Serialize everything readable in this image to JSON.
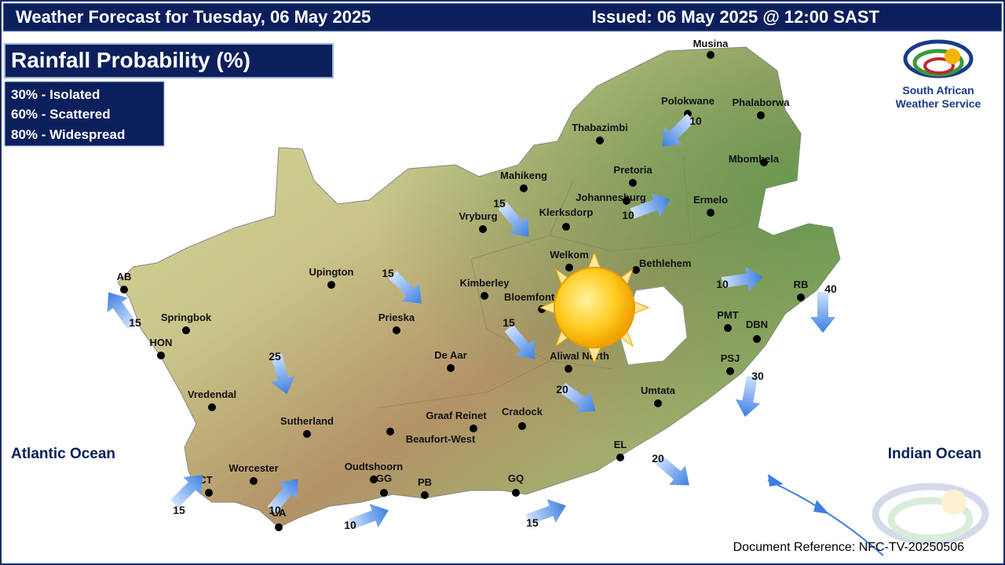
{
  "header": {
    "title": "Weather Forecast for Tuesday, 06 May 2025",
    "issued": "Issued: 06 May 2025 @ 12:00 SAST"
  },
  "panel": {
    "title": "Rainfall Probability (%)",
    "legend": [
      "30% - Isolated",
      "60% - Scattered",
      "80% - Widespread"
    ]
  },
  "logo": {
    "line1": "South African",
    "line2": "Weather Service"
  },
  "oceans": [
    "Atlantic Ocean",
    "Indian Ocean"
  ],
  "cities": [
    "Musina",
    "Polokwane",
    "Phalaborwa",
    "Thabazimbi",
    "Mbombela",
    "Mahikeng",
    "Pretoria",
    "Johannesburg",
    "Ermelo",
    "Vryburg",
    "Klerksdorp",
    "Welkom",
    "Bethlehem",
    "AB",
    "Upington",
    "Kimberley",
    "Bloemfontein",
    "RB",
    "Springbok",
    "Prieska",
    "PMT",
    "DBN",
    "HON",
    "De Aar",
    "Aliwal North",
    "PSJ",
    "Vredendal",
    "Umtata",
    "Graaf Reinet",
    "Cradock",
    "Sutherland",
    "Beaufort-West",
    "EL",
    "Worcester",
    "Oudtshoorn",
    "GG",
    "PB",
    "GQ",
    "CT",
    "CA"
  ],
  "probabilities": [
    10,
    15,
    10,
    15,
    10,
    40,
    15,
    15,
    25,
    30,
    20,
    20,
    15,
    10,
    10,
    15
  ],
  "footer": "Document Reference: NFC-TV-20250506"
}
